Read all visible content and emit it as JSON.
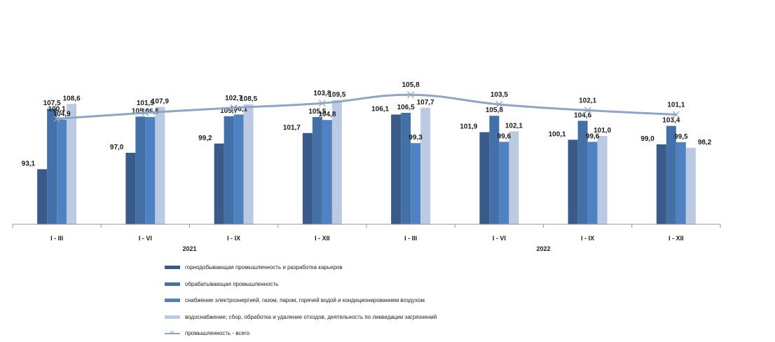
{
  "chart_data": {
    "type": "bar",
    "categories": [
      "I - III",
      "I - VI",
      "I - IX",
      "I - XII",
      "I - III",
      "I - VI",
      "I - IX",
      "I - XII"
    ],
    "year_labels": [
      "2021",
      "2022"
    ],
    "ylim": [
      80,
      115
    ],
    "line_ylim": [
      90,
      115
    ],
    "grid": false,
    "legend_position": "bottom",
    "series": [
      {
        "name": "горнодобывающая промышленность  и разработка карьеров",
        "values": [
          93.1,
          97.0,
          99.2,
          101.7,
          106.1,
          101.9,
          100.1,
          99.0
        ],
        "value_labels": [
          "93,1",
          "97,0",
          "99,2",
          "101,7",
          "106,1",
          "101,9",
          "100,1",
          "99,0"
        ],
        "color": "#3A5A8A"
      },
      {
        "name": "обрабатывающая промышленность",
        "values": [
          107.5,
          105.6,
          105.7,
          105.5,
          106.5,
          105.8,
          104.6,
          103.4
        ],
        "value_labels": [
          "107,5",
          "105,6",
          "105,7",
          "105,5",
          "106,5",
          "105,8",
          "104,6",
          "103,4"
        ],
        "color": "#4470A8"
      },
      {
        "name": "снабжение электроэнергией,   газом, паром, горячей водой и   кондиционированием  воздухом",
        "values": [
          104.9,
          105.5,
          106.1,
          104.8,
          99.3,
          99.6,
          99.6,
          99.5
        ],
        "value_labels": [
          "104,9",
          "105,5",
          "106,1",
          "104,8",
          "99,3",
          "99,6",
          "99,6",
          "99,5"
        ],
        "color": "#4F82C2"
      },
      {
        "name": "водоснабжение; сбор,  обработка и удаление  отходов, деятельность по ликвидации загрязнений",
        "values": [
          108.6,
          107.9,
          108.5,
          109.5,
          107.7,
          102.1,
          101.0,
          98.2
        ],
        "value_labels": [
          "108,6",
          "107,9",
          "108,5",
          "109,5",
          "107,7",
          "102,1",
          "101,0",
          "98,2"
        ],
        "color": "#BCC9E2"
      }
    ],
    "line_series": {
      "name": "промышленность - всего",
      "values": [
        100.1,
        101.5,
        102.7,
        103.8,
        105.8,
        103.5,
        102.1,
        101.1
      ],
      "value_labels": [
        "100,1",
        "101,5",
        "102,7",
        "103,8",
        "105,8",
        "103,5",
        "102,1",
        "101,1"
      ],
      "color": "#8EA5C8",
      "marker": "x"
    }
  }
}
